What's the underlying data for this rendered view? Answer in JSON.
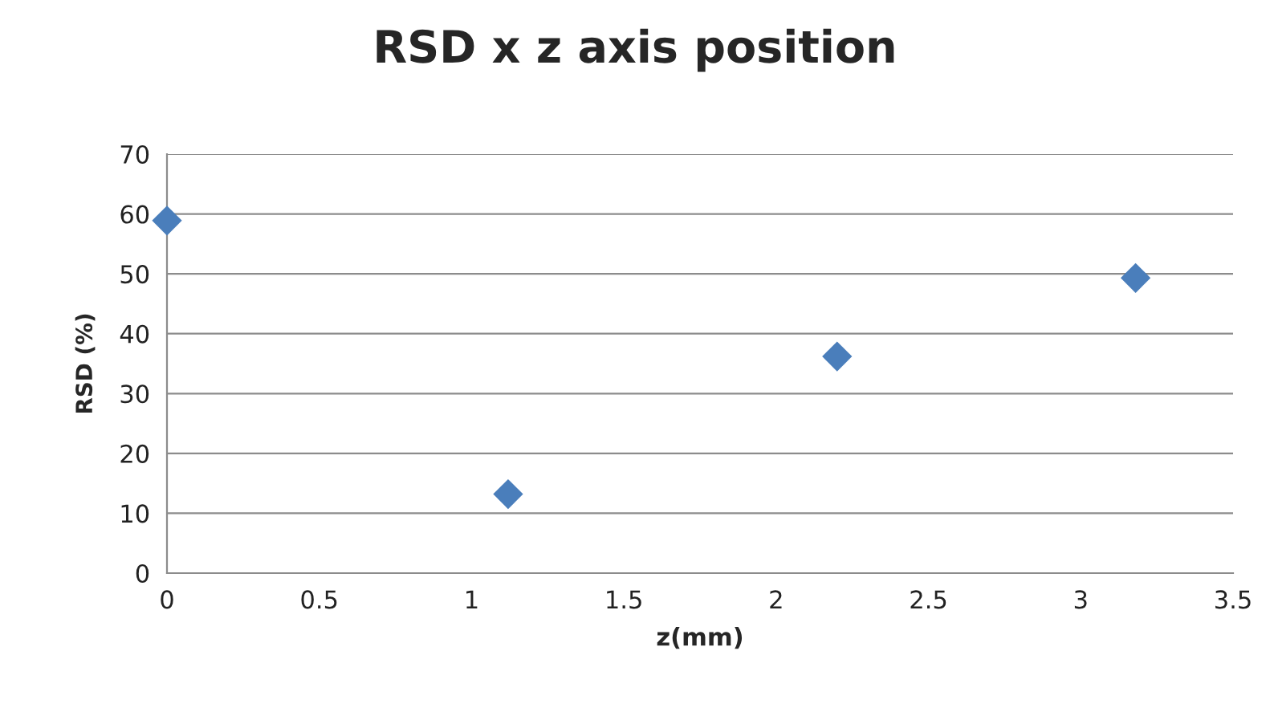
{
  "chart_data": {
    "type": "scatter",
    "title": "RSD x z axis position",
    "xlabel": "z(mm)",
    "ylabel": "RSD (%)",
    "x": [
      0,
      1.12,
      2.2,
      3.18
    ],
    "series": [
      {
        "color": "#4a7ebb",
        "values": [
          58.9,
          13.2,
          36.2,
          49.3
        ]
      }
    ],
    "xlim": [
      0,
      3.5
    ],
    "xticks": [
      0,
      0.5,
      1,
      1.5,
      2,
      2.5,
      3,
      3.5
    ],
    "ylim": [
      0,
      70
    ],
    "yticks": [
      0,
      10,
      20,
      30,
      40,
      50,
      60,
      70
    ],
    "grid": "y",
    "marker": "diamond"
  }
}
